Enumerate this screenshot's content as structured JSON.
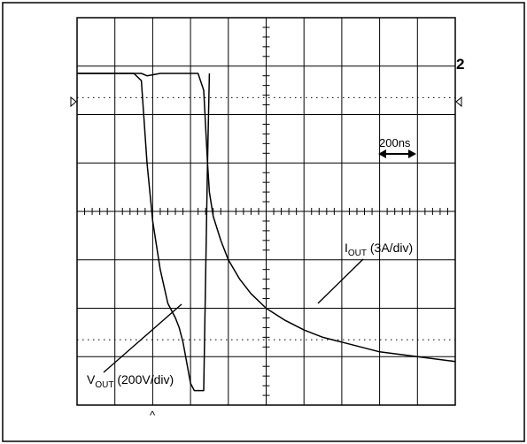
{
  "chart_data": {
    "type": "line",
    "grid": true,
    "grid_divisions": {
      "x": 10,
      "y": 8
    },
    "x_range_div": [
      0,
      10
    ],
    "y_range_div": [
      0,
      8
    ],
    "time_scale_label": "200ns",
    "channel_marker": "2",
    "trigger_marker": "^",
    "series": [
      {
        "name": "V_OUT",
        "label_main": "V",
        "label_sub": "OUT",
        "label_scale": " (200V/div)",
        "x": [
          0.0,
          1.0,
          1.5,
          1.7,
          1.85,
          2.0,
          2.2,
          2.4,
          2.6,
          2.7,
          2.8,
          3.0,
          3.1,
          3.2,
          3.35,
          3.45,
          3.5
        ],
        "y": [
          6.85,
          6.85,
          6.85,
          6.7,
          5.0,
          3.8,
          2.8,
          2.1,
          1.8,
          1.6,
          1.3,
          0.45,
          0.3,
          0.3,
          0.3,
          5.0,
          6.85
        ]
      },
      {
        "name": "I_OUT",
        "label_main": "I",
        "label_sub": "OUT",
        "label_scale": " (3A/div)",
        "x": [
          0.0,
          1.7,
          1.85,
          2.2,
          2.6,
          3.0,
          3.2,
          3.35,
          3.45,
          3.5,
          3.6,
          3.8,
          4.0,
          4.3,
          4.6,
          5.0,
          5.5,
          6.0,
          6.5,
          7.0,
          7.5,
          8.0,
          8.5,
          9.0,
          9.5,
          10.0
        ],
        "y": [
          6.85,
          6.85,
          6.8,
          6.85,
          6.85,
          6.85,
          6.85,
          6.5,
          5.0,
          4.4,
          3.9,
          3.4,
          3.0,
          2.6,
          2.3,
          2.0,
          1.75,
          1.55,
          1.4,
          1.3,
          1.2,
          1.1,
          1.05,
          1.0,
          0.95,
          0.9
        ]
      }
    ],
    "reference_lines_div": [
      6.35,
      1.35
    ]
  }
}
